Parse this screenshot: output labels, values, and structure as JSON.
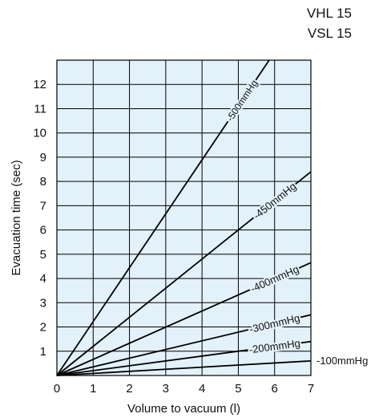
{
  "header": {
    "models": [
      "VHL 15",
      "VSL 15"
    ]
  },
  "chart_data": {
    "type": "line",
    "title": "",
    "xlabel": "Volume to vacuum (l)",
    "ylabel": "Evacuation time (sec)",
    "xlim": [
      0,
      7
    ],
    "ylim": [
      0,
      13
    ],
    "x_ticks": [
      0,
      1,
      2,
      3,
      4,
      5,
      6,
      7
    ],
    "y_ticks": [
      1,
      2,
      3,
      4,
      5,
      6,
      7,
      8,
      9,
      10,
      11,
      12
    ],
    "grid": true,
    "background_color": "#e3f1fb",
    "line_color": "#000000",
    "series": [
      {
        "name": "-500mmHg",
        "x": [
          0,
          5.85
        ],
        "y": [
          0,
          13
        ]
      },
      {
        "name": "-450mmHg",
        "x": [
          0,
          7
        ],
        "y": [
          0,
          8.4
        ]
      },
      {
        "name": "-400mmHg",
        "x": [
          0,
          7
        ],
        "y": [
          0,
          4.65
        ]
      },
      {
        "name": "-300mmHg",
        "x": [
          0,
          7
        ],
        "y": [
          0,
          2.5
        ]
      },
      {
        "name": "-200mmHg",
        "x": [
          0,
          7
        ],
        "y": [
          0,
          1.4
        ]
      },
      {
        "name": "-100mmHg",
        "x": [
          0,
          7
        ],
        "y": [
          0,
          0.6
        ]
      }
    ]
  }
}
